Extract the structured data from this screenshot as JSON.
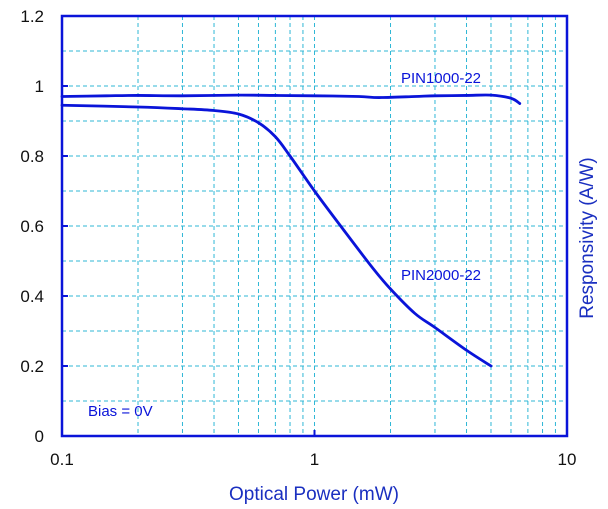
{
  "chart_data": {
    "type": "line",
    "title": "",
    "xlabel": "Optical Power (mW)",
    "ylabel": "Responsivity (A/W)",
    "x_scale": "log",
    "xlim": [
      0.1,
      10
    ],
    "ylim": [
      0,
      1.2
    ],
    "x_ticks": [
      0.1,
      1,
      10
    ],
    "x_tick_labels": [
      "0.1",
      "1",
      "10"
    ],
    "y_ticks": [
      0,
      0.2,
      0.4,
      0.6,
      0.8,
      1,
      1.2
    ],
    "y_tick_labels": [
      "0",
      "0.2",
      "0.4",
      "0.6",
      "0.8",
      "1",
      "1.2"
    ],
    "grid": true,
    "annotations": [
      {
        "text": "Bias = 0V"
      }
    ],
    "series": [
      {
        "name": "PIN1000-22",
        "x": [
          0.1,
          0.15,
          0.2,
          0.3,
          0.5,
          0.7,
          1,
          1.5,
          1.8,
          2.5,
          3,
          4,
          5,
          6,
          6.5
        ],
        "y": [
          0.97,
          0.972,
          0.973,
          0.972,
          0.974,
          0.973,
          0.972,
          0.97,
          0.967,
          0.97,
          0.972,
          0.973,
          0.974,
          0.965,
          0.95
        ]
      },
      {
        "name": "PIN2000-22",
        "x": [
          0.1,
          0.2,
          0.3,
          0.4,
          0.5,
          0.6,
          0.7,
          0.8,
          1,
          1.3,
          1.7,
          2,
          2.5,
          3,
          4,
          5
        ],
        "y": [
          0.945,
          0.94,
          0.935,
          0.93,
          0.92,
          0.895,
          0.855,
          0.8,
          0.7,
          0.59,
          0.48,
          0.42,
          0.35,
          0.31,
          0.245,
          0.2
        ]
      }
    ]
  },
  "colors": {
    "axis_and_series": "#0a14d9",
    "grid": "#2fb7d6",
    "axis_text": "#1a2fc0"
  }
}
